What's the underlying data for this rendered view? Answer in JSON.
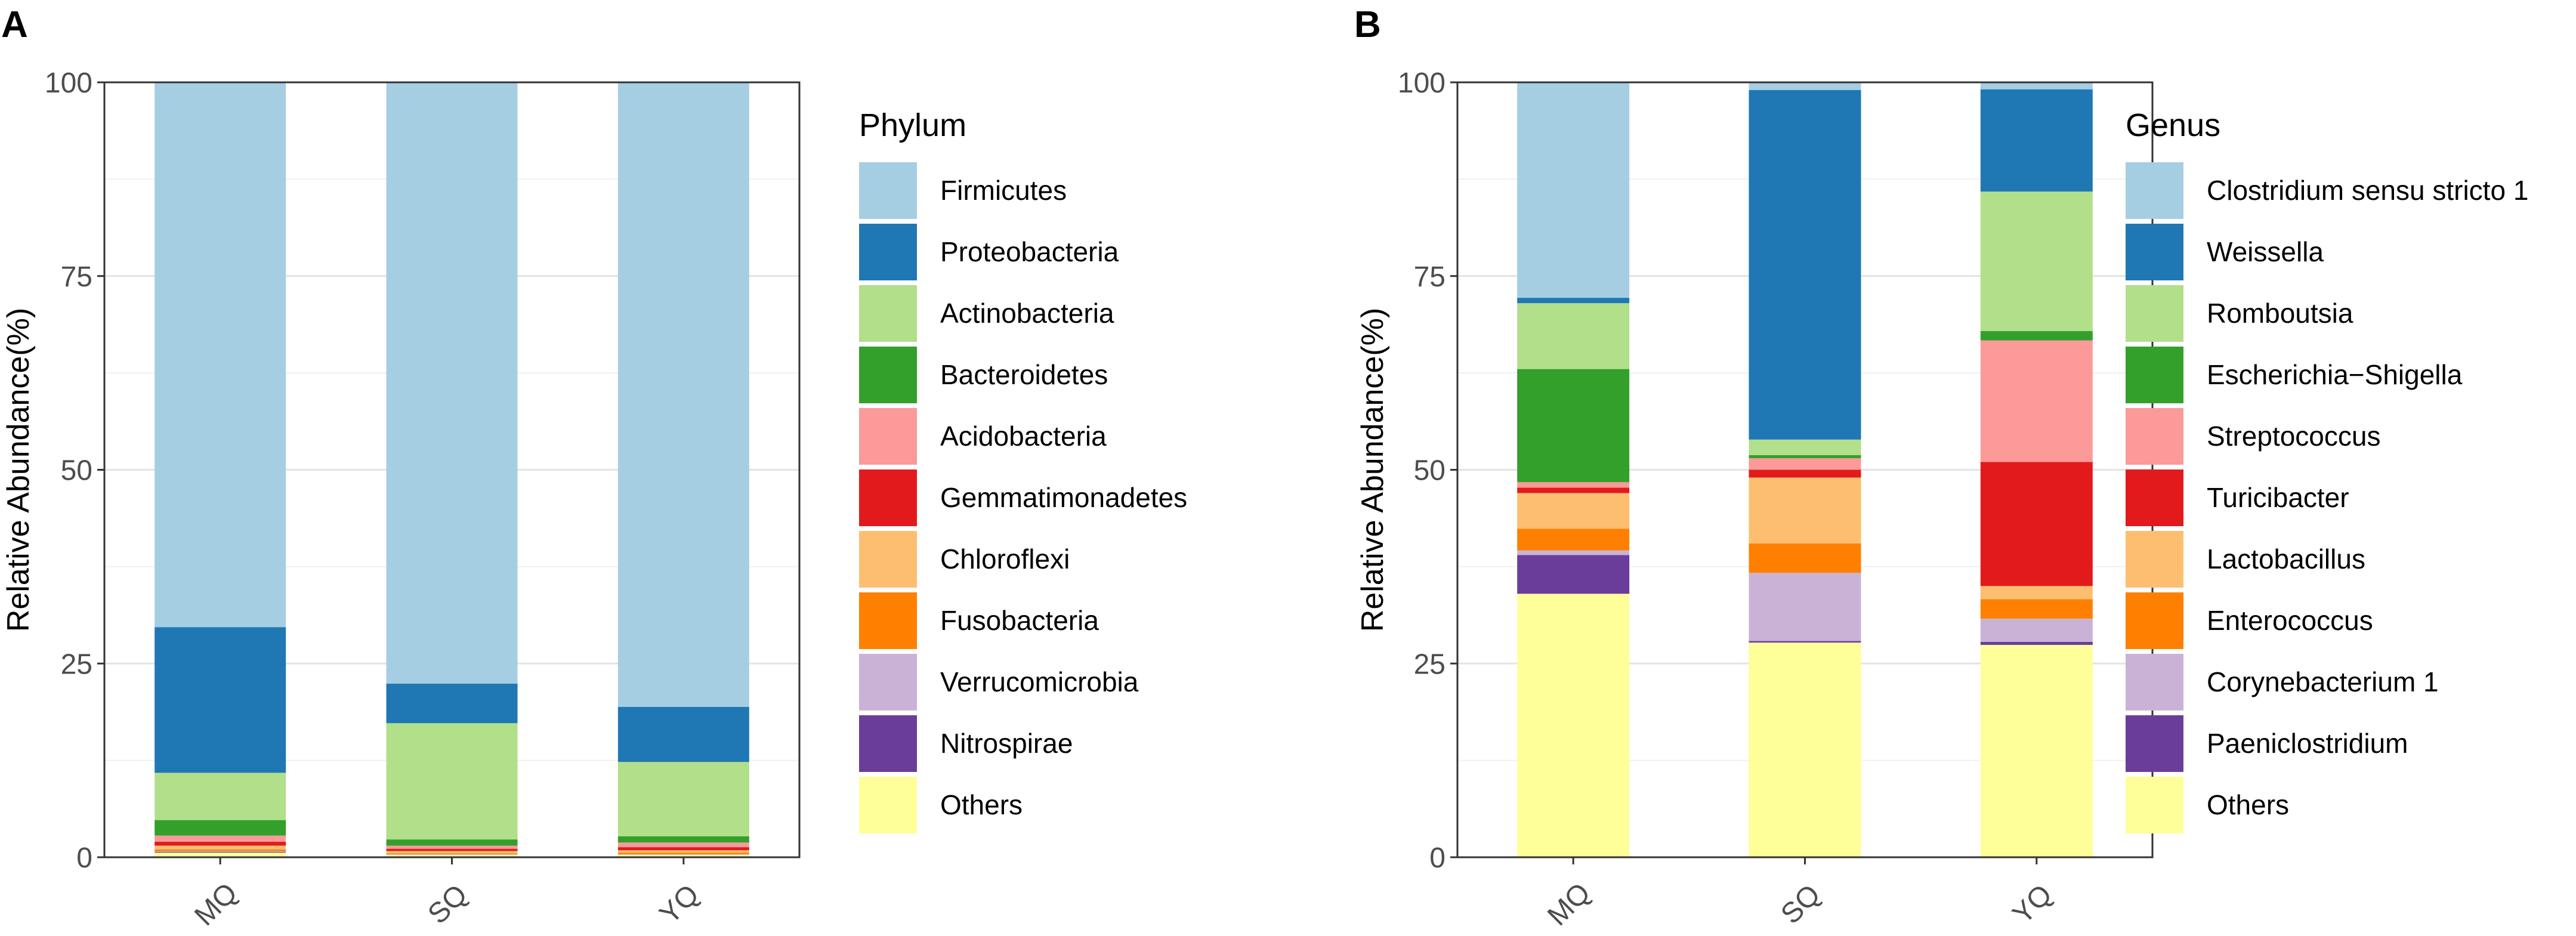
{
  "figure": {
    "labels": [
      "A",
      "B"
    ]
  },
  "chart_data": [
    {
      "type": "bar",
      "stacked": true,
      "panel": "A",
      "categories": [
        "MQ",
        "SQ",
        "YQ"
      ],
      "ylabel": "Relative Abundance(%)",
      "xlabel": "",
      "ylim": [
        0,
        100
      ],
      "yticks": [
        "0",
        "25",
        "50",
        "75",
        "100"
      ],
      "legend_title": "Phylum",
      "series": [
        {
          "name": "Others",
          "color": "#FFFF99",
          "values": [
            0.6,
            0.3,
            0.3
          ]
        },
        {
          "name": "Nitrospirae",
          "color": "#6A3D9A",
          "values": [
            0.1,
            0.0,
            0.0
          ]
        },
        {
          "name": "Verrucomicrobia",
          "color": "#CAB2D6",
          "values": [
            0.1,
            0.1,
            0.1
          ]
        },
        {
          "name": "Fusobacteria",
          "color": "#FF7F00",
          "values": [
            0.2,
            0.1,
            0.2
          ]
        },
        {
          "name": "Chloroflexi",
          "color": "#FDBF6F",
          "values": [
            0.5,
            0.3,
            0.3
          ]
        },
        {
          "name": "Gemmatimonadetes",
          "color": "#E31A1C",
          "values": [
            0.5,
            0.3,
            0.4
          ]
        },
        {
          "name": "Acidobacteria",
          "color": "#FB9A99",
          "values": [
            0.8,
            0.4,
            0.6
          ]
        },
        {
          "name": "Bacteroidetes",
          "color": "#33A02C",
          "values": [
            2.0,
            0.8,
            0.8
          ]
        },
        {
          "name": "Actinobacteria",
          "color": "#B2DF8A",
          "values": [
            6.1,
            15.0,
            9.6
          ]
        },
        {
          "name": "Proteobacteria",
          "color": "#1F78B4",
          "values": [
            18.8,
            5.1,
            7.1
          ]
        },
        {
          "name": "Firmicutes",
          "color": "#A6CEE3",
          "values": [
            70.3,
            77.6,
            80.6
          ]
        }
      ]
    },
    {
      "type": "bar",
      "stacked": true,
      "panel": "B",
      "categories": [
        "MQ",
        "SQ",
        "YQ"
      ],
      "ylabel": "Relative Abundance(%)",
      "xlabel": "",
      "ylim": [
        0,
        100
      ],
      "yticks": [
        "0",
        "25",
        "50",
        "75",
        "100"
      ],
      "legend_title": "Genus",
      "series": [
        {
          "name": "Others",
          "color": "#FFFF99",
          "values": [
            34.0,
            27.7,
            27.4
          ]
        },
        {
          "name": "Paeniclostridium",
          "color": "#6A3D9A",
          "values": [
            5.0,
            0.2,
            0.4
          ]
        },
        {
          "name": "Corynebacterium 1",
          "color": "#CAB2D6",
          "values": [
            0.6,
            8.8,
            3.0
          ]
        },
        {
          "name": "Enterococcus",
          "color": "#FF7F00",
          "values": [
            2.8,
            3.8,
            2.5
          ]
        },
        {
          "name": "Lactobacillus",
          "color": "#FDBF6F",
          "values": [
            4.6,
            8.5,
            1.7
          ]
        },
        {
          "name": "Turicibacter",
          "color": "#E31A1C",
          "values": [
            0.7,
            1.0,
            16.0
          ]
        },
        {
          "name": "Streptococcus",
          "color": "#FB9A99",
          "values": [
            0.7,
            1.5,
            15.7
          ]
        },
        {
          "name": "Escherichia−Shigella",
          "color": "#33A02C",
          "values": [
            14.6,
            0.4,
            1.2
          ]
        },
        {
          "name": "Romboutsia",
          "color": "#B2DF8A",
          "values": [
            8.5,
            2.0,
            18.0
          ]
        },
        {
          "name": "Weissella",
          "color": "#1F78B4",
          "values": [
            0.7,
            45.1,
            13.2
          ]
        },
        {
          "name": "Clostridium sensu stricto 1",
          "color": "#A6CEE3",
          "values": [
            27.8,
            1.0,
            0.9
          ]
        }
      ]
    }
  ]
}
